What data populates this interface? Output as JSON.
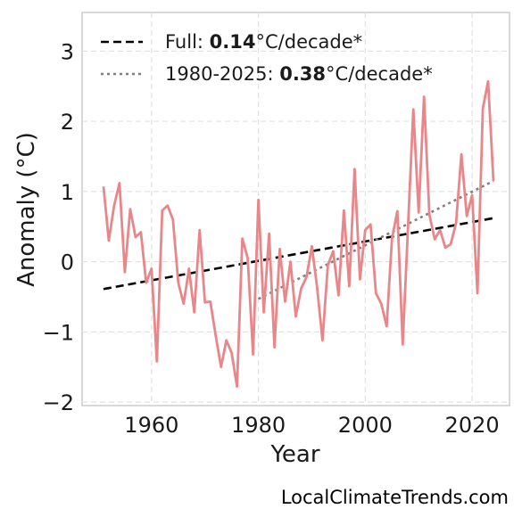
{
  "chart_data": {
    "type": "line",
    "xlabel": "Year",
    "ylabel": "Anomaly (°C)",
    "xlim": [
      1947,
      2027
    ],
    "ylim": [
      -2.05,
      3.55
    ],
    "xticks": [
      1960,
      1980,
      2000,
      2020
    ],
    "yticks": [
      -2,
      -1,
      0,
      1,
      2,
      3
    ],
    "ytick_labels": [
      "−2",
      "−1",
      "0",
      "1",
      "2",
      "3"
    ],
    "grid": true,
    "legend_position": "top-left",
    "series": [
      {
        "x": [
          1951,
          1952,
          1953,
          1954,
          1955,
          1956,
          1957,
          1958,
          1959,
          1960,
          1961,
          1962,
          1963,
          1964,
          1965,
          1966,
          1967,
          1968,
          1969,
          1970,
          1971,
          1972,
          1973,
          1974,
          1975,
          1976,
          1977,
          1978,
          1979,
          1980,
          1981,
          1982,
          1983,
          1984,
          1985,
          1986,
          1987,
          1988,
          1989,
          1990,
          1991,
          1992,
          1993,
          1994,
          1995,
          1996,
          1997,
          1998,
          1999,
          2000,
          2001,
          2002,
          2003,
          2004,
          2005,
          2006,
          2007,
          2008,
          2009,
          2010,
          2011,
          2012,
          2013,
          2014,
          2015,
          2016,
          2017,
          2018,
          2019,
          2020,
          2021,
          2022,
          2023,
          2024
        ],
        "values": [
          1.07,
          0.3,
          0.8,
          1.12,
          -0.15,
          0.75,
          0.35,
          0.42,
          -0.3,
          -0.1,
          -1.42,
          0.73,
          0.8,
          0.6,
          -0.3,
          -0.6,
          -0.1,
          -0.72,
          0.45,
          -0.58,
          -0.57,
          -1.05,
          -1.5,
          -1.12,
          -1.3,
          -1.78,
          0.33,
          0.05,
          -1.32,
          0.88,
          -0.72,
          0.4,
          -1.22,
          0.18,
          -0.57,
          0.0,
          -0.78,
          -0.38,
          -0.22,
          0.22,
          -0.38,
          -1.12,
          -0.05,
          0.15,
          -0.48,
          0.73,
          -0.35,
          1.32,
          -0.25,
          0.45,
          0.53,
          -0.45,
          -0.6,
          -0.92,
          0.33,
          0.72,
          -1.18,
          0.48,
          2.17,
          0.7,
          2.35,
          0.67,
          0.32,
          0.45,
          0.2,
          0.25,
          0.55,
          1.53,
          0.65,
          0.95,
          -0.45,
          2.18,
          2.57,
          1.15
        ],
        "color": "#e8868a"
      }
    ],
    "trends": [
      {
        "label_prefix": "Full: ",
        "label_value": "0.14",
        "label_suffix": "°C/decade*",
        "x": [
          1951,
          2024
        ],
        "y": [
          -0.39,
          0.62
        ],
        "color": "#000000",
        "style": "dashed"
      },
      {
        "label_prefix": "1980-2025: ",
        "label_value": "0.38",
        "label_suffix": "°C/decade*",
        "x": [
          1980,
          2024
        ],
        "y": [
          -0.53,
          1.15
        ],
        "color": "#7f7f7f",
        "style": "dotted"
      }
    ]
  },
  "footer": {
    "source": "LocalClimateTrends.com"
  }
}
